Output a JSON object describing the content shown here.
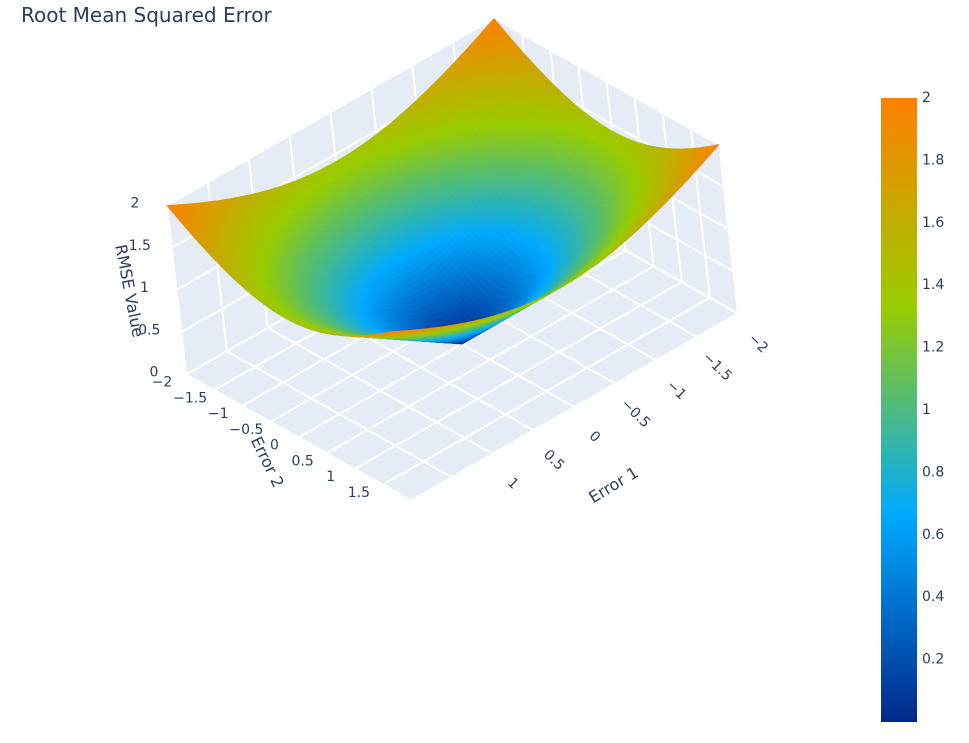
{
  "chart_data": {
    "type": "surface",
    "title": "Root Mean Squared Error",
    "function": "sqrt((e1^2 + e2^2) / 2)",
    "x": {
      "label": "Error 1",
      "range": [
        -2,
        2
      ],
      "ticks": [
        "−2",
        "−1.5",
        "−1",
        "−0.5",
        "0",
        "0.5",
        "1"
      ]
    },
    "y": {
      "label": "Error 2",
      "range": [
        -2,
        2
      ],
      "ticks": [
        "−2",
        "−1.5",
        "−1",
        "−0.5",
        "0",
        "0.5",
        "1",
        "1.5"
      ]
    },
    "z": {
      "label": "RMSE Value",
      "range": [
        0,
        2
      ],
      "ticks": [
        "0",
        "0.5",
        "1",
        "1.5",
        "2"
      ]
    },
    "colorbar": {
      "min": 0,
      "max": 2,
      "ticks": [
        "0.2",
        "0.4",
        "0.6",
        "0.8",
        "1",
        "1.2",
        "1.4",
        "1.6",
        "1.8",
        "2"
      ],
      "colorscale": [
        "#00288c",
        "#00aaff",
        "#99cc00",
        "#ff8000"
      ]
    },
    "background_color": "#e5ecf6",
    "grid_color": "#ffffff"
  }
}
